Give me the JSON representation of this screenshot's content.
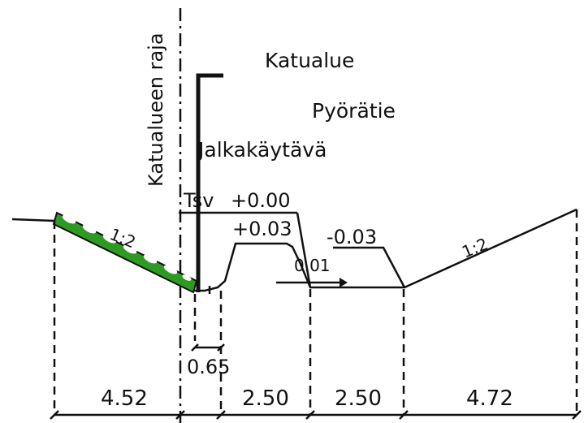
{
  "labels": {
    "street_area": "Katualue",
    "bike_path": "Pyörätie",
    "sidewalk": "Jalkakäytävä",
    "street_boundary": "Katualueen raja",
    "tsv": "Tsv",
    "level_0": "+0.00",
    "level_plus": "+0.03",
    "level_minus": "-0.03",
    "slope_arrow": "0.01",
    "slope_left": "1:2",
    "slope_right": "1:2",
    "offset_small": "0.65"
  },
  "dimensions": [
    "4.52",
    "2.50",
    "2.50",
    "4.72"
  ],
  "colors": {
    "retaining_fill": "#2e9a24",
    "line": "#111111"
  }
}
